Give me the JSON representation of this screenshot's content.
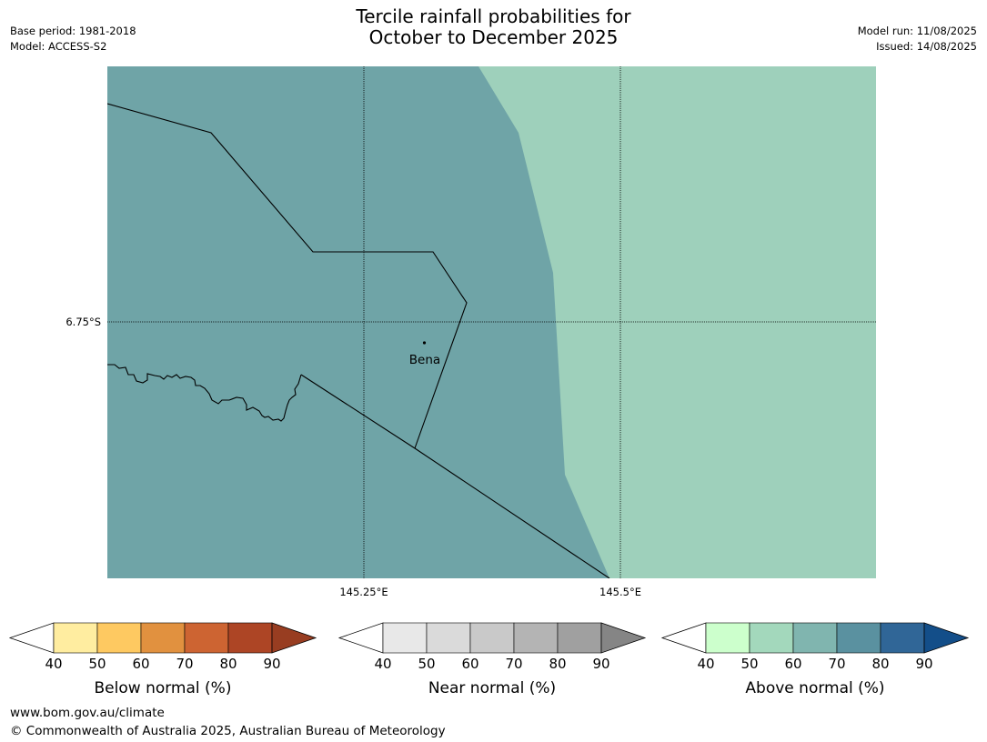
{
  "header": {
    "base_period": "Base period: 1981-2018",
    "model": "Model: ACCESS-S2",
    "title_line1": "Tercile rainfall probabilities for",
    "title_line2": "October to December 2025",
    "model_run": "Model run: 11/08/2025",
    "issued": "Issued: 14/08/2025"
  },
  "map": {
    "lat_label": "6.75°S",
    "lon_labels": [
      "145.25°E",
      "145.5°E"
    ],
    "place_label": "Bena",
    "colors": {
      "left_region": "#6fa4a7",
      "right_region": "#9ed0bb",
      "grid_line": "#000000",
      "boundary": "#000000"
    }
  },
  "colorbars": [
    {
      "label": "Below normal (%)",
      "ticks": [
        "40",
        "50",
        "60",
        "70",
        "80",
        "90"
      ],
      "colors": [
        "#ffeda0",
        "#fec961",
        "#e1913f",
        "#cd6432",
        "#ad4525",
        "#983d21"
      ]
    },
    {
      "label": "Near normal (%)",
      "ticks": [
        "40",
        "50",
        "60",
        "70",
        "80",
        "90"
      ],
      "colors": [
        "#e8e8e8",
        "#dadada",
        "#c9c9c9",
        "#b4b4b4",
        "#a0a0a0",
        "#858585"
      ]
    },
    {
      "label": "Above normal (%)",
      "ticks": [
        "40",
        "50",
        "60",
        "70",
        "80",
        "90"
      ],
      "colors": [
        "#ccffcc",
        "#a3d8bc",
        "#80b5af",
        "#5a91a0",
        "#306697",
        "#134e89"
      ]
    }
  ],
  "footer": {
    "url": "www.bom.gov.au/climate",
    "copyright": "© Commonwealth of Australia 2025, Australian Bureau of Meteorology"
  }
}
